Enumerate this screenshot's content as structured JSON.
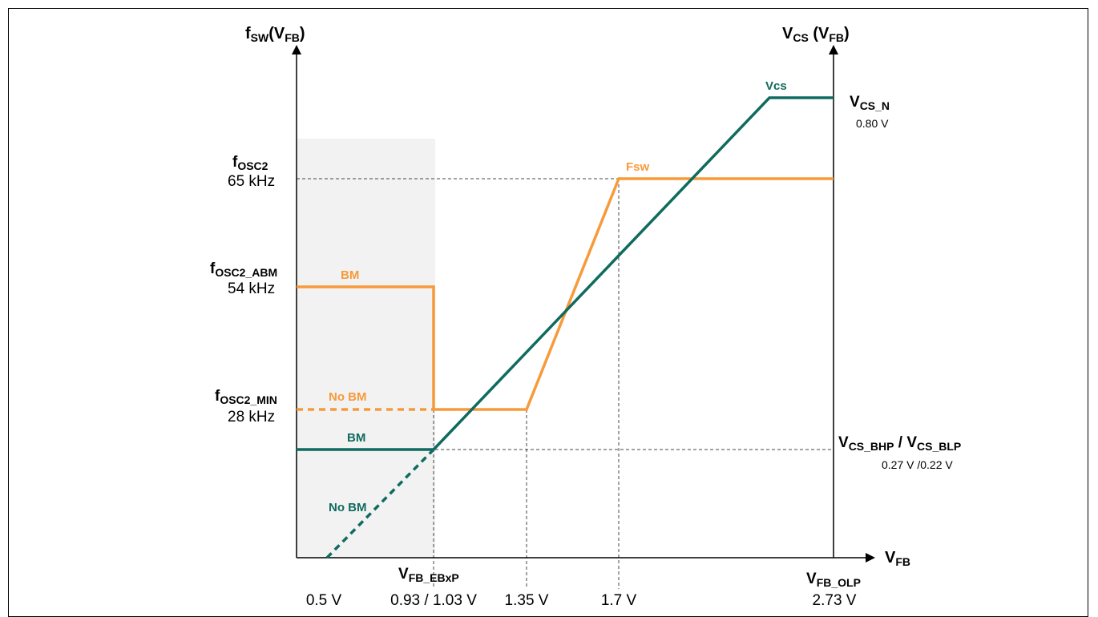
{
  "chart_data": {
    "type": "line",
    "left_axis": {
      "main": "f",
      "sub": "SW",
      "paren": "(V",
      "paren_sub": "FB",
      "close": ")"
    },
    "right_axis": {
      "main": "V",
      "sub": "CS",
      "paren": " (V",
      "paren_sub": "FB",
      "close": ")"
    },
    "x_axis": {
      "main": "V",
      "sub": "FB"
    },
    "y_left_labels": [
      {
        "main": "f",
        "sub": "OSC2",
        "value": "65 kHz"
      },
      {
        "main": "f",
        "sub": "OSC2_ABM",
        "value": "54 kHz"
      },
      {
        "main": "f",
        "sub": "OSC2_MIN",
        "value": "28 kHz"
      }
    ],
    "y_right_labels": [
      {
        "main": "V",
        "sub": "CS_N",
        "value": "0.80 V"
      },
      {
        "main": "V",
        "sub": "CS_BHP",
        "sep": " / ",
        "main2": "V",
        "sub2": "CS_BLP",
        "value": "0.27 V /0.22 V"
      }
    ],
    "x_tick_labels": [
      "0.5 V",
      "0.93 / 1.03 V",
      "1.35 V",
      "1.7 V",
      "2.73 V"
    ],
    "x_named_labels": [
      {
        "main": "V",
        "sub": "FB_EBxP"
      },
      {
        "main": "V",
        "sub": "FB_OLP"
      }
    ],
    "series": [
      {
        "name": "Fsw",
        "color": "#f79a3a",
        "x": [
          0.93,
          1.35,
          1.7,
          2.73
        ],
        "y": [
          28,
          28,
          65,
          65
        ]
      },
      {
        "name": "BM",
        "color": "#f79a3a",
        "x": [
          0.35,
          0.93,
          0.93
        ],
        "y": [
          54,
          54,
          28
        ]
      },
      {
        "name": "No BM",
        "color": "#f79a3a",
        "x": [
          0.35,
          0.93
        ],
        "y": [
          28,
          28
        ]
      },
      {
        "name": "Vcs",
        "color": "#0f6b5f",
        "x": [
          0.93,
          2.5,
          2.73
        ],
        "y": [
          0.27,
          0.8,
          0.8
        ]
      },
      {
        "name": "BM",
        "color": "#0f6b5f",
        "x": [
          0.35,
          0.93
        ],
        "y": [
          0.27,
          0.27
        ]
      },
      {
        "name": "No BM",
        "color": "#0f6b5f",
        "x": [
          0.5,
          0.93
        ],
        "y": [
          0.0,
          0.27
        ]
      }
    ]
  }
}
